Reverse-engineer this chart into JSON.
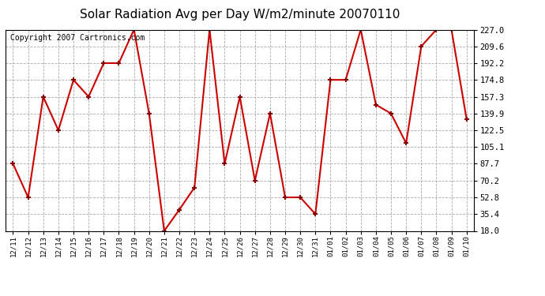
{
  "title": "Solar Radiation Avg per Day W/m2/minute 20070110",
  "copyright": "Copyright 2007 Cartronics.com",
  "labels": [
    "12/11",
    "12/12",
    "12/13",
    "12/14",
    "12/15",
    "12/16",
    "12/17",
    "12/18",
    "12/19",
    "12/20",
    "12/21",
    "12/22",
    "12/23",
    "12/24",
    "12/25",
    "12/26",
    "12/27",
    "12/28",
    "12/29",
    "12/30",
    "12/31",
    "01/01",
    "01/02",
    "01/03",
    "01/04",
    "01/05",
    "01/06",
    "01/07",
    "01/08",
    "01/09",
    "01/10"
  ],
  "values": [
    87.7,
    52.8,
    157.3,
    122.5,
    174.8,
    157.3,
    192.2,
    192.2,
    227.0,
    139.9,
    18.0,
    40.0,
    63.0,
    227.0,
    87.7,
    157.3,
    70.2,
    139.9,
    52.8,
    52.8,
    35.4,
    174.8,
    174.8,
    227.0,
    149.0,
    139.9,
    109.0,
    209.6,
    227.0,
    227.0,
    134.0
  ],
  "ymin": 18.0,
  "ymax": 227.0,
  "yticks": [
    18.0,
    35.4,
    52.8,
    70.2,
    87.7,
    105.1,
    122.5,
    139.9,
    157.3,
    174.8,
    192.2,
    209.6,
    227.0
  ],
  "line_color": "#cc0000",
  "marker_color": "#880000",
  "bg_color": "#ffffff",
  "plot_bg_color": "#ffffff",
  "grid_color": "#aaaaaa",
  "title_fontsize": 11,
  "copyright_fontsize": 7
}
